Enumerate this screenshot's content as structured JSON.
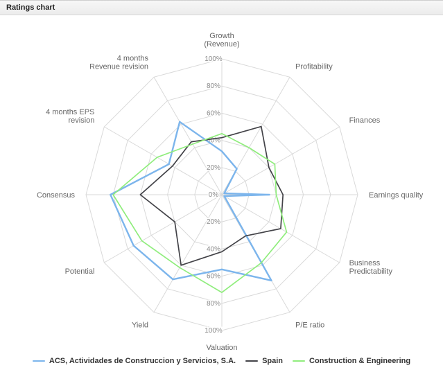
{
  "header": {
    "title": "Ratings chart"
  },
  "chart_data": {
    "type": "radar",
    "title": "Ratings chart",
    "categories": [
      [
        "Growth",
        "(Revenue)"
      ],
      [
        "Profitability"
      ],
      [
        "Finances"
      ],
      [
        "Earnings quality"
      ],
      [
        "Business",
        "Predictability"
      ],
      [
        "P/E ratio"
      ],
      [
        "Valuation"
      ],
      [
        "Yield"
      ],
      [
        "Potential"
      ],
      [
        "Consensus"
      ],
      [
        "4 months EPS",
        "revision"
      ],
      [
        "4 months",
        "Revenue revision"
      ]
    ],
    "axis": {
      "min": 0,
      "max": 100,
      "tick_interval": 20,
      "tick_suffix": "%"
    },
    "grid": {
      "shape": "polygon",
      "color": "#d9d9d9",
      "visible": true
    },
    "legend_position": "bottom",
    "series": [
      {
        "name": "ACS, Actividades de Construccion y Servicios, S.A.",
        "color": "#7cb5ec",
        "line_width": 2.4,
        "values": [
          32,
          22,
          2,
          35,
          2,
          73,
          55,
          72,
          75,
          82,
          45,
          62
        ]
      },
      {
        "name": "Spain",
        "color": "#434348",
        "line_width": 1.7,
        "values": [
          42,
          58,
          40,
          45,
          50,
          35,
          42,
          60,
          40,
          60,
          42,
          45
        ]
      },
      {
        "name": "Construction & Engineering",
        "color": "#90ed7d",
        "line_width": 1.7,
        "values": [
          45,
          40,
          45,
          40,
          55,
          58,
          72,
          62,
          68,
          80,
          55,
          43
        ]
      }
    ]
  }
}
